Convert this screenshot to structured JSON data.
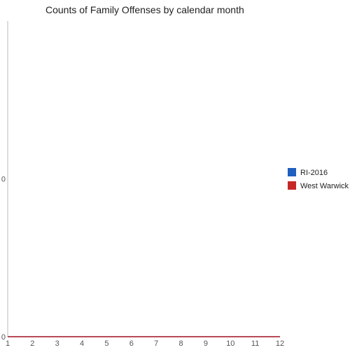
{
  "chart_data": {
    "type": "line",
    "title": "Counts of Family Offenses by calendar month",
    "xlabel": "",
    "ylabel": "",
    "x": [
      1,
      2,
      3,
      4,
      5,
      6,
      7,
      8,
      9,
      10,
      11,
      12
    ],
    "xlim": [
      1,
      12
    ],
    "ylim": [
      0,
      1
    ],
    "y_ticks": [
      {
        "value": 0,
        "label": "0"
      },
      {
        "value": 0.5,
        "label": "0"
      }
    ],
    "grid": false,
    "legend_position": "right",
    "series": [
      {
        "name": "RI-2016",
        "color": "#1f5fbf",
        "values": [
          0,
          0,
          0,
          0,
          0,
          0,
          0,
          0,
          0,
          0,
          0,
          0
        ]
      },
      {
        "name": "West Warwick",
        "color": "#c62828",
        "values": [
          0,
          0,
          0,
          0,
          0,
          0,
          0,
          0,
          0,
          0,
          0,
          0
        ]
      }
    ],
    "axis_color": "#bbbbbb"
  }
}
